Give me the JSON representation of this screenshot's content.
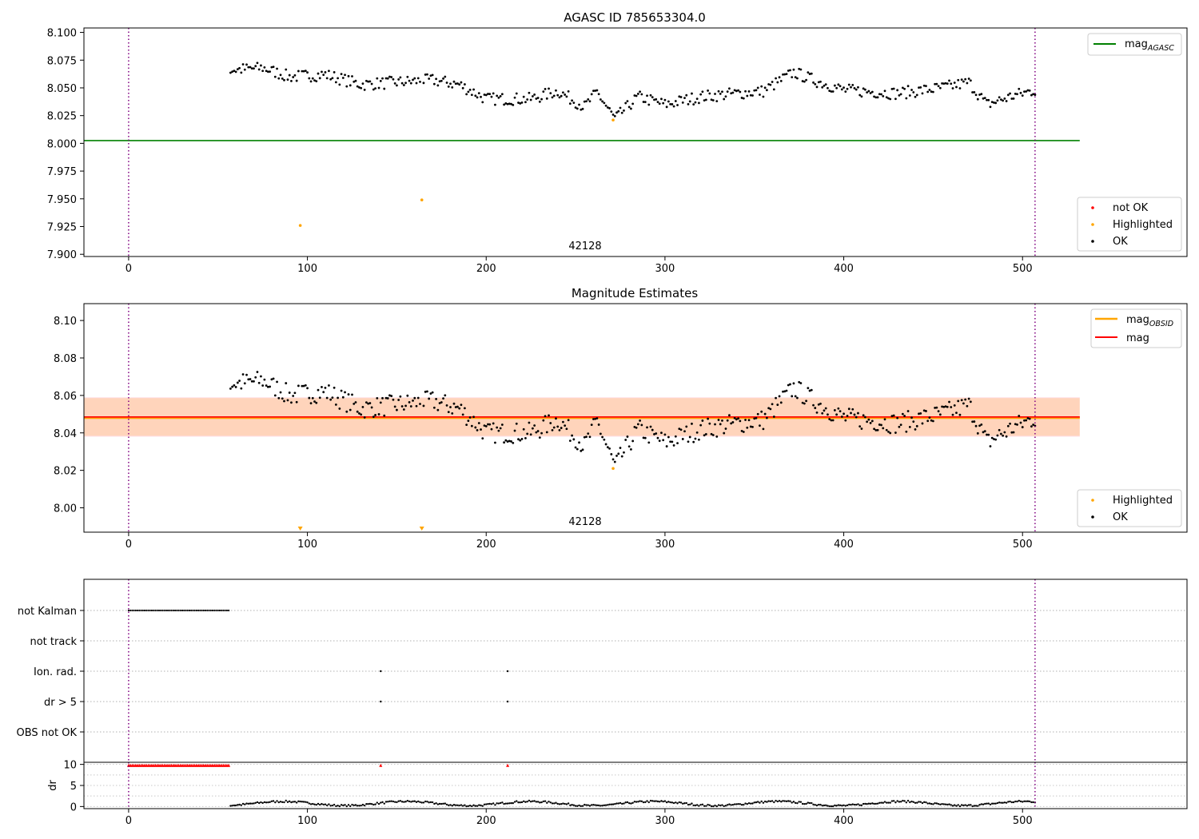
{
  "chart_data": [
    {
      "type": "scatter",
      "title": "AGASC ID 785653304.0",
      "xlim": [
        -25,
        592
      ],
      "ylim": [
        7.898,
        8.104
      ],
      "xticks": [
        "0",
        "100",
        "200",
        "300",
        "400",
        "500"
      ],
      "yticks": [
        "8.100",
        "8.075",
        "8.050",
        "8.025",
        "8.000",
        "7.975",
        "7.950",
        "7.925",
        "7.900"
      ],
      "annotation": "42128",
      "vlines": [
        0,
        507
      ],
      "hline_agasc": 8.0025,
      "hline_xrange": [
        -25,
        532
      ],
      "legend_lines": [
        {
          "label": "mag",
          "sub": "AGASC",
          "color": "#008000"
        }
      ],
      "legend_markers": [
        {
          "label": "not OK",
          "color": "#ff0000"
        },
        {
          "label": "Highlighted",
          "color": "#ffa500"
        },
        {
          "label": "OK",
          "color": "#000000"
        }
      ],
      "highlighted": [
        [
          96,
          7.926
        ],
        [
          164,
          7.949
        ],
        [
          271,
          8.021
        ]
      ]
    },
    {
      "type": "scatter",
      "title": "Magnitude Estimates",
      "xlim": [
        -25,
        592
      ],
      "ylim": [
        7.987,
        8.109
      ],
      "xticks": [
        "0",
        "100",
        "200",
        "300",
        "400",
        "500"
      ],
      "yticks": [
        "8.10",
        "8.08",
        "8.06",
        "8.04",
        "8.02",
        "8.00"
      ],
      "annotation": "42128",
      "vlines": [
        0,
        507
      ],
      "mag": 8.0485,
      "mag_obsid": 8.048,
      "band": [
        8.038,
        8.059
      ],
      "band_xrange": [
        -25,
        532
      ],
      "legend_lines": [
        {
          "label": "mag",
          "sub": "OBSID",
          "color": "#ffa500"
        },
        {
          "label": "mag",
          "sub": "",
          "color": "#ff0000"
        }
      ],
      "legend_markers": [
        {
          "label": "Highlighted",
          "color": "#ffa500"
        },
        {
          "label": "OK",
          "color": "#000000"
        }
      ],
      "highlighted": [
        [
          271,
          8.021
        ]
      ],
      "offscale_markers": [
        96,
        164
      ]
    },
    {
      "type": "scatter",
      "title": "",
      "xlim": [
        -25,
        592
      ],
      "categories": [
        "not Kalman",
        "not track",
        "Ion. rad.",
        "dr > 5",
        "OBS not OK"
      ],
      "flag_points": {
        "not Kalman": {
          "range": [
            0,
            56
          ]
        },
        "Ion. rad.": {
          "points": [
            141,
            212
          ]
        },
        "dr > 5": {
          "points": [
            141,
            212
          ]
        }
      },
      "vlines": [
        0,
        507
      ]
    },
    {
      "type": "scatter",
      "ylabel": "dr",
      "xlim": [
        -25,
        592
      ],
      "ylim": [
        -0.5,
        10.5
      ],
      "xticks": [
        "0",
        "100",
        "200",
        "300",
        "400",
        "500"
      ],
      "yticks": [
        "10",
        "5",
        "0"
      ],
      "capped_value": 9.8,
      "capped_range": [
        0,
        56
      ],
      "capped_points": [
        141,
        212
      ],
      "vlines": [
        0,
        507
      ]
    }
  ]
}
